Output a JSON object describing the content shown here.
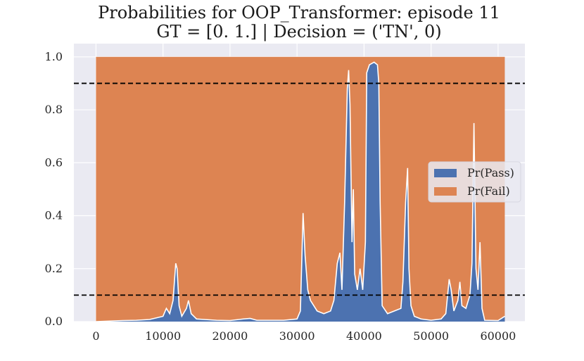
{
  "chart_data": {
    "type": "area",
    "title_line1": "Probabilities for OOP_Transformer: episode 11",
    "title_line2": "GT = [0. 1.] | Decision = ('TN', 0)",
    "xlim": [
      -3300,
      64000
    ],
    "ylim": [
      0.0,
      1.05
    ],
    "x_ticks": [
      0,
      10000,
      20000,
      30000,
      40000,
      50000,
      60000
    ],
    "y_ticks": [
      0.0,
      0.2,
      0.4,
      0.6,
      0.8,
      1.0
    ],
    "x_tick_labels": [
      "0",
      "10000",
      "20000",
      "30000",
      "40000",
      "50000",
      "60000"
    ],
    "y_tick_labels": [
      "0.0",
      "0.2",
      "0.4",
      "0.6",
      "0.8",
      "1.0"
    ],
    "grid": true,
    "legend_position": "center-right",
    "thresholds": [
      0.9,
      0.1
    ],
    "threshold_style": "black dashed",
    "colors": {
      "pass": "#4c72b0",
      "fail": "#dd8452",
      "background": "#eaeaf2",
      "grid": "#ffffff"
    },
    "series": [
      {
        "name": "Pr(Pass)",
        "color": "#4c72b0",
        "points": [
          [
            0,
            0.0
          ],
          [
            2000,
            0.002
          ],
          [
            4000,
            0.004
          ],
          [
            6000,
            0.005
          ],
          [
            8000,
            0.008
          ],
          [
            10000,
            0.02
          ],
          [
            10500,
            0.05
          ],
          [
            11000,
            0.03
          ],
          [
            11500,
            0.08
          ],
          [
            11900,
            0.22
          ],
          [
            12100,
            0.2
          ],
          [
            12400,
            0.06
          ],
          [
            12800,
            0.02
          ],
          [
            13500,
            0.05
          ],
          [
            13800,
            0.08
          ],
          [
            14200,
            0.03
          ],
          [
            15000,
            0.01
          ],
          [
            18000,
            0.005
          ],
          [
            20000,
            0.004
          ],
          [
            22000,
            0.01
          ],
          [
            23000,
            0.012
          ],
          [
            24000,
            0.005
          ],
          [
            28000,
            0.005
          ],
          [
            30000,
            0.01
          ],
          [
            30500,
            0.04
          ],
          [
            30900,
            0.41
          ],
          [
            31200,
            0.25
          ],
          [
            31600,
            0.12
          ],
          [
            32000,
            0.08
          ],
          [
            33000,
            0.04
          ],
          [
            34000,
            0.03
          ],
          [
            35000,
            0.04
          ],
          [
            35500,
            0.08
          ],
          [
            36000,
            0.22
          ],
          [
            36400,
            0.26
          ],
          [
            36700,
            0.12
          ],
          [
            37100,
            0.45
          ],
          [
            37500,
            0.88
          ],
          [
            37700,
            0.95
          ],
          [
            37900,
            0.82
          ],
          [
            38200,
            0.3
          ],
          [
            38400,
            0.5
          ],
          [
            38600,
            0.18
          ],
          [
            39000,
            0.12
          ],
          [
            39400,
            0.2
          ],
          [
            39800,
            0.12
          ],
          [
            40200,
            0.3
          ],
          [
            40400,
            0.94
          ],
          [
            40800,
            0.97
          ],
          [
            41500,
            0.98
          ],
          [
            42000,
            0.97
          ],
          [
            42200,
            0.9
          ],
          [
            42400,
            0.45
          ],
          [
            42700,
            0.06
          ],
          [
            43500,
            0.03
          ],
          [
            44500,
            0.04
          ],
          [
            45500,
            0.05
          ],
          [
            45800,
            0.15
          ],
          [
            46200,
            0.45
          ],
          [
            46500,
            0.58
          ],
          [
            46700,
            0.2
          ],
          [
            47000,
            0.06
          ],
          [
            47500,
            0.02
          ],
          [
            48500,
            0.01
          ],
          [
            50000,
            0.005
          ],
          [
            51500,
            0.01
          ],
          [
            52200,
            0.03
          ],
          [
            52700,
            0.16
          ],
          [
            53000,
            0.12
          ],
          [
            53400,
            0.04
          ],
          [
            54000,
            0.08
          ],
          [
            54300,
            0.15
          ],
          [
            54600,
            0.06
          ],
          [
            55200,
            0.05
          ],
          [
            55800,
            0.1
          ],
          [
            56100,
            0.22
          ],
          [
            56400,
            0.75
          ],
          [
            56700,
            0.2
          ],
          [
            57000,
            0.12
          ],
          [
            57300,
            0.3
          ],
          [
            57600,
            0.05
          ],
          [
            58000,
            0.005
          ],
          [
            60000,
            0.004
          ],
          [
            61000,
            0.02
          ]
        ]
      },
      {
        "name": "Pr(Fail)",
        "color": "#dd8452",
        "description": "complement: 1 - Pr(Pass), stacked above"
      }
    ]
  }
}
